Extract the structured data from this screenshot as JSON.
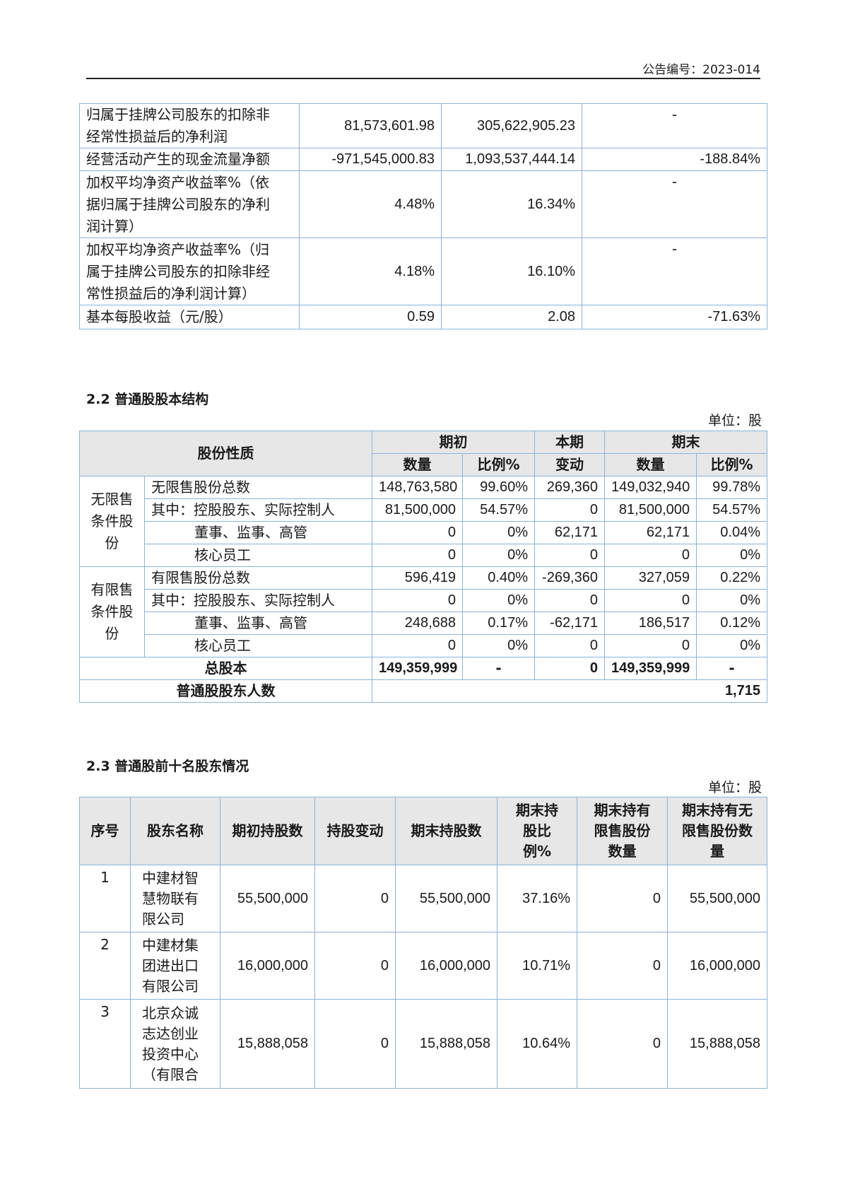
{
  "header": {
    "announcement_no": "公告编号：2023-014"
  },
  "table1": {
    "rows": [
      {
        "label": "归属于挂牌公司股东的扣除非经常性损益后的净利润",
        "current": "81,573,601.98",
        "previous": "305,622,905.23",
        "change": "-"
      },
      {
        "label": "经营活动产生的现金流量净额",
        "current": "-971,545,000.83",
        "previous": "1,093,537,444.14",
        "change": "-188.84%"
      },
      {
        "label": "加权平均净资产收益率%（依据归属于挂牌公司股东的净利润计算）",
        "current": "4.48%",
        "previous": "16.34%",
        "change": "-"
      },
      {
        "label": "加权平均净资产收益率%（归属于挂牌公司股东的扣除非经常性损益后的净利润计算）",
        "current": "4.18%",
        "previous": "16.10%",
        "change": "-"
      },
      {
        "label": "基本每股收益（元/股）",
        "current": "0.59",
        "previous": "2.08",
        "change": "-71.63%"
      }
    ]
  },
  "section22": {
    "title": "2.2  普通股股本结构",
    "unit": "单位：股",
    "headers": {
      "nature": "股份性质",
      "begin": "期初",
      "change_top": "本期",
      "change_bottom": "变动",
      "end": "期末",
      "qty": "数量",
      "ratio": "比例%"
    },
    "groups": [
      {
        "label": "无限售条件股份",
        "rows": [
          {
            "label": "无限售股份总数",
            "indent": false,
            "begin_qty": "148,763,580",
            "begin_ratio": "99.60%",
            "change": "269,360",
            "end_qty": "149,032,940",
            "end_ratio": "99.78%"
          },
          {
            "label": "其中：控股股东、实际控制人",
            "indent": false,
            "begin_qty": "81,500,000",
            "begin_ratio": "54.57%",
            "change": "0",
            "end_qty": "81,500,000",
            "end_ratio": "54.57%"
          },
          {
            "label": "董事、监事、高管",
            "indent": true,
            "begin_qty": "0",
            "begin_ratio": "0%",
            "change": "62,171",
            "end_qty": "62,171",
            "end_ratio": "0.04%"
          },
          {
            "label": "核心员工",
            "indent": true,
            "begin_qty": "0",
            "begin_ratio": "0%",
            "change": "0",
            "end_qty": "0",
            "end_ratio": "0%"
          }
        ]
      },
      {
        "label": "有限售条件股份",
        "rows": [
          {
            "label": "有限售股份总数",
            "indent": false,
            "begin_qty": "596,419",
            "begin_ratio": "0.40%",
            "change": "-269,360",
            "end_qty": "327,059",
            "end_ratio": "0.22%"
          },
          {
            "label": "其中：控股股东、实际控制人",
            "indent": false,
            "begin_qty": "0",
            "begin_ratio": "0%",
            "change": "0",
            "end_qty": "0",
            "end_ratio": "0%"
          },
          {
            "label": "董事、监事、高管",
            "indent": true,
            "begin_qty": "248,688",
            "begin_ratio": "0.17%",
            "change": "-62,171",
            "end_qty": "186,517",
            "end_ratio": "0.12%"
          },
          {
            "label": "核心员工",
            "indent": true,
            "begin_qty": "0",
            "begin_ratio": "0%",
            "change": "0",
            "end_qty": "0",
            "end_ratio": "0%"
          }
        ]
      }
    ],
    "total": {
      "label": "总股本",
      "begin_qty": "149,359,999",
      "begin_ratio": "-",
      "change": "0",
      "end_qty": "149,359,999",
      "end_ratio": "-"
    },
    "holders": {
      "label": "普通股股东人数",
      "value": "1,715"
    }
  },
  "section23": {
    "title": "2.3  普通股前十名股东情况",
    "unit": "单位：股",
    "headers": [
      "序号",
      "股东名称",
      "期初持股数",
      "持股变动",
      "期末持股数",
      "期末持股比例%",
      "期末持有限售股份数量",
      "期末持有无限售股份数量"
    ],
    "rows": [
      {
        "no": "1",
        "name": "中建材智慧物联有限公司",
        "begin": "55,500,000",
        "change": "0",
        "end": "55,500,000",
        "ratio": "37.16%",
        "restricted": "0",
        "unrestricted": "55,500,000"
      },
      {
        "no": "2",
        "name": "中建材集团进出口有限公司",
        "begin": "16,000,000",
        "change": "0",
        "end": "16,000,000",
        "ratio": "10.71%",
        "restricted": "0",
        "unrestricted": "16,000,000"
      },
      {
        "no": "3",
        "name": "北京众诚志达创业投资中心（有限合",
        "begin": "15,888,058",
        "change": "0",
        "end": "15,888,058",
        "ratio": "10.64%",
        "restricted": "0",
        "unrestricted": "15,888,058"
      }
    ]
  }
}
